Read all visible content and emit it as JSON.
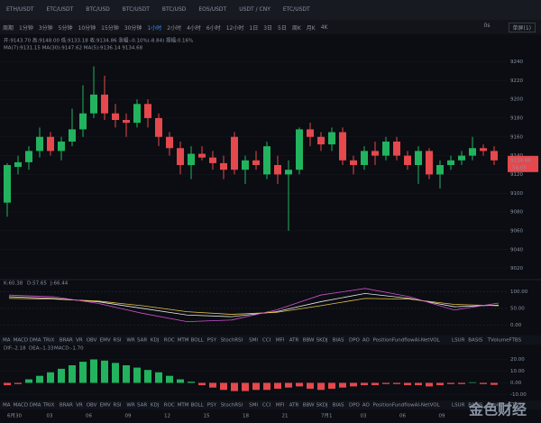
{
  "tabs": [
    "ETH/USDT",
    "ETC/USDT",
    "BTC/USD",
    "BTC/USDT",
    "BTC/USD",
    "EOS/USDT",
    "USDT / CNY",
    "ETC/USDT"
  ],
  "periods": [
    "周期",
    "1分钟",
    "3分钟",
    "5分钟",
    "10分钟",
    "15分钟",
    "30分钟",
    "1小时",
    "2小时",
    "4小时",
    "6小时",
    "12小时",
    "1日",
    "3日",
    "5日",
    "周K",
    "月K",
    "4K"
  ],
  "active_period": "1小时",
  "toolbar_right": [
    "0s",
    "单屏(1)"
  ],
  "info_line": "开:9143.70 高:9148.00 低:9133.18 收:9134.86 涨幅:-0.10%(-8.84) 振幅:0.16%",
  "ma_line": "MA(7):9131.15  MA(30):9147.62  MA(5):9136.14  9134.68",
  "main_chart": {
    "ylim": [
      9010,
      9250
    ],
    "yticks": [
      9020,
      9040,
      9060,
      9080,
      9100,
      9120,
      9140,
      9160,
      9180,
      9200,
      9220,
      9240
    ],
    "last_price": "9134.86",
    "countdown": "54:05",
    "candles": [
      [
        9090,
        9132,
        9075,
        9130
      ],
      [
        9128,
        9140,
        9120,
        9133
      ],
      [
        9133,
        9150,
        9125,
        9145
      ],
      [
        9145,
        9170,
        9138,
        9160
      ],
      [
        9160,
        9165,
        9140,
        9145
      ],
      [
        9145,
        9160,
        9135,
        9155
      ],
      [
        9155,
        9190,
        9150,
        9168
      ],
      [
        9168,
        9215,
        9160,
        9185
      ],
      [
        9185,
        9235,
        9180,
        9205
      ],
      [
        9205,
        9225,
        9178,
        9185
      ],
      [
        9185,
        9195,
        9170,
        9178
      ],
      [
        9178,
        9185,
        9160,
        9175
      ],
      [
        9175,
        9200,
        9170,
        9195
      ],
      [
        9195,
        9200,
        9170,
        9180
      ],
      [
        9180,
        9185,
        9150,
        9160
      ],
      [
        9160,
        9165,
        9140,
        9148
      ],
      [
        9148,
        9155,
        9120,
        9130
      ],
      [
        9130,
        9150,
        9115,
        9142
      ],
      [
        9142,
        9150,
        9135,
        9138
      ],
      [
        9138,
        9145,
        9125,
        9132
      ],
      [
        9132,
        9140,
        9115,
        9125
      ],
      [
        9160,
        9165,
        9120,
        9125
      ],
      [
        9125,
        9140,
        9110,
        9135
      ],
      [
        9135,
        9145,
        9125,
        9130
      ],
      [
        9120,
        9155,
        9115,
        9150
      ],
      [
        9130,
        9140,
        9110,
        9120
      ],
      [
        9120,
        9135,
        9060,
        9125
      ],
      [
        9125,
        9170,
        9120,
        9168
      ],
      [
        9168,
        9175,
        9150,
        9160
      ],
      [
        9160,
        9165,
        9145,
        9152
      ],
      [
        9152,
        9170,
        9145,
        9165
      ],
      [
        9165,
        9170,
        9130,
        9135
      ],
      [
        9135,
        9140,
        9120,
        9130
      ],
      [
        9130,
        9150,
        9125,
        9145
      ],
      [
        9145,
        9155,
        9130,
        9140
      ],
      [
        9140,
        9160,
        9135,
        9155
      ],
      [
        9155,
        9160,
        9135,
        9140
      ],
      [
        9140,
        9145,
        9125,
        9130
      ],
      [
        9130,
        9150,
        9110,
        9145
      ],
      [
        9145,
        9148,
        9115,
        9120
      ],
      [
        9120,
        9135,
        9105,
        9130
      ],
      [
        9130,
        9140,
        9125,
        9135
      ],
      [
        9135,
        9145,
        9130,
        9140
      ],
      [
        9140,
        9160,
        9135,
        9148
      ],
      [
        9148,
        9152,
        9140,
        9145
      ],
      [
        9145,
        9150,
        9130,
        9135
      ]
    ]
  },
  "kdj": {
    "legend": [
      "K:60.38",
      "D:57.65",
      "J:66.44"
    ],
    "ylim": [
      -10,
      115
    ],
    "yticks": [
      {
        "value": 100,
        "label": "100.00"
      },
      {
        "value": 50,
        "label": "50.00"
      },
      {
        "value": 0,
        "label": "0.00"
      }
    ],
    "series": [
      {
        "name": "K",
        "color": "#e8e8e8",
        "values": [
          85,
          80,
          70,
          50,
          30,
          25,
          40,
          70,
          95,
          80,
          55,
          60
        ]
      },
      {
        "name": "D",
        "color": "#e6c44a",
        "values": [
          80,
          78,
          72,
          58,
          40,
          32,
          38,
          58,
          80,
          78,
          62,
          58
        ]
      },
      {
        "name": "J",
        "color": "#d04fd0",
        "values": [
          90,
          85,
          65,
          35,
          10,
          15,
          45,
          90,
          110,
          85,
          45,
          66
        ]
      }
    ]
  },
  "indicators": [
    "MA",
    "MACD",
    "DMA",
    "TRIX",
    "BRAR",
    "VR",
    "OBV",
    "EMV",
    "RSI",
    "WR",
    "SAR",
    "KDJ",
    "ROC",
    "MTM",
    "BOLL",
    "PSY",
    "StochRSI",
    "SMI",
    "CCI",
    "MFI",
    "ATR",
    "BBW",
    "SKDJ",
    "BIAS",
    "DPO",
    "AO",
    "PositionFundflowAI-NetVOL",
    "LSUR",
    "BASIS",
    "TVolumeFTBS"
  ],
  "macd": {
    "legend": [
      "DIF:-2.18",
      "DEA:-1.33",
      "MACD:-1.70"
    ],
    "ylim": [
      -15,
      25
    ],
    "yticks": [
      {
        "value": 20,
        "label": "20.00"
      },
      {
        "value": 10,
        "label": "10.00"
      },
      {
        "value": 0,
        "label": "0.00"
      },
      {
        "value": -10,
        "label": "-10.00"
      }
    ],
    "hist": [
      -2,
      -1,
      3,
      6,
      9,
      12,
      15,
      18,
      20,
      19,
      17,
      15,
      13,
      11,
      9,
      6,
      3,
      1,
      -2,
      -4,
      -6,
      -7,
      -7,
      -6,
      -6,
      -5,
      -4,
      -3,
      -5,
      -6,
      -5,
      -4,
      -3,
      -2,
      -2,
      -1,
      -1,
      -2,
      -2,
      -3,
      -2,
      -1,
      -1,
      0.5,
      -1,
      -1.7
    ]
  },
  "dates": [
    "6月30",
    "03",
    "06",
    "09",
    "12",
    "15",
    "18",
    "21",
    "7月1",
    "03",
    "06",
    "09"
  ],
  "watermark": "金色财经"
}
